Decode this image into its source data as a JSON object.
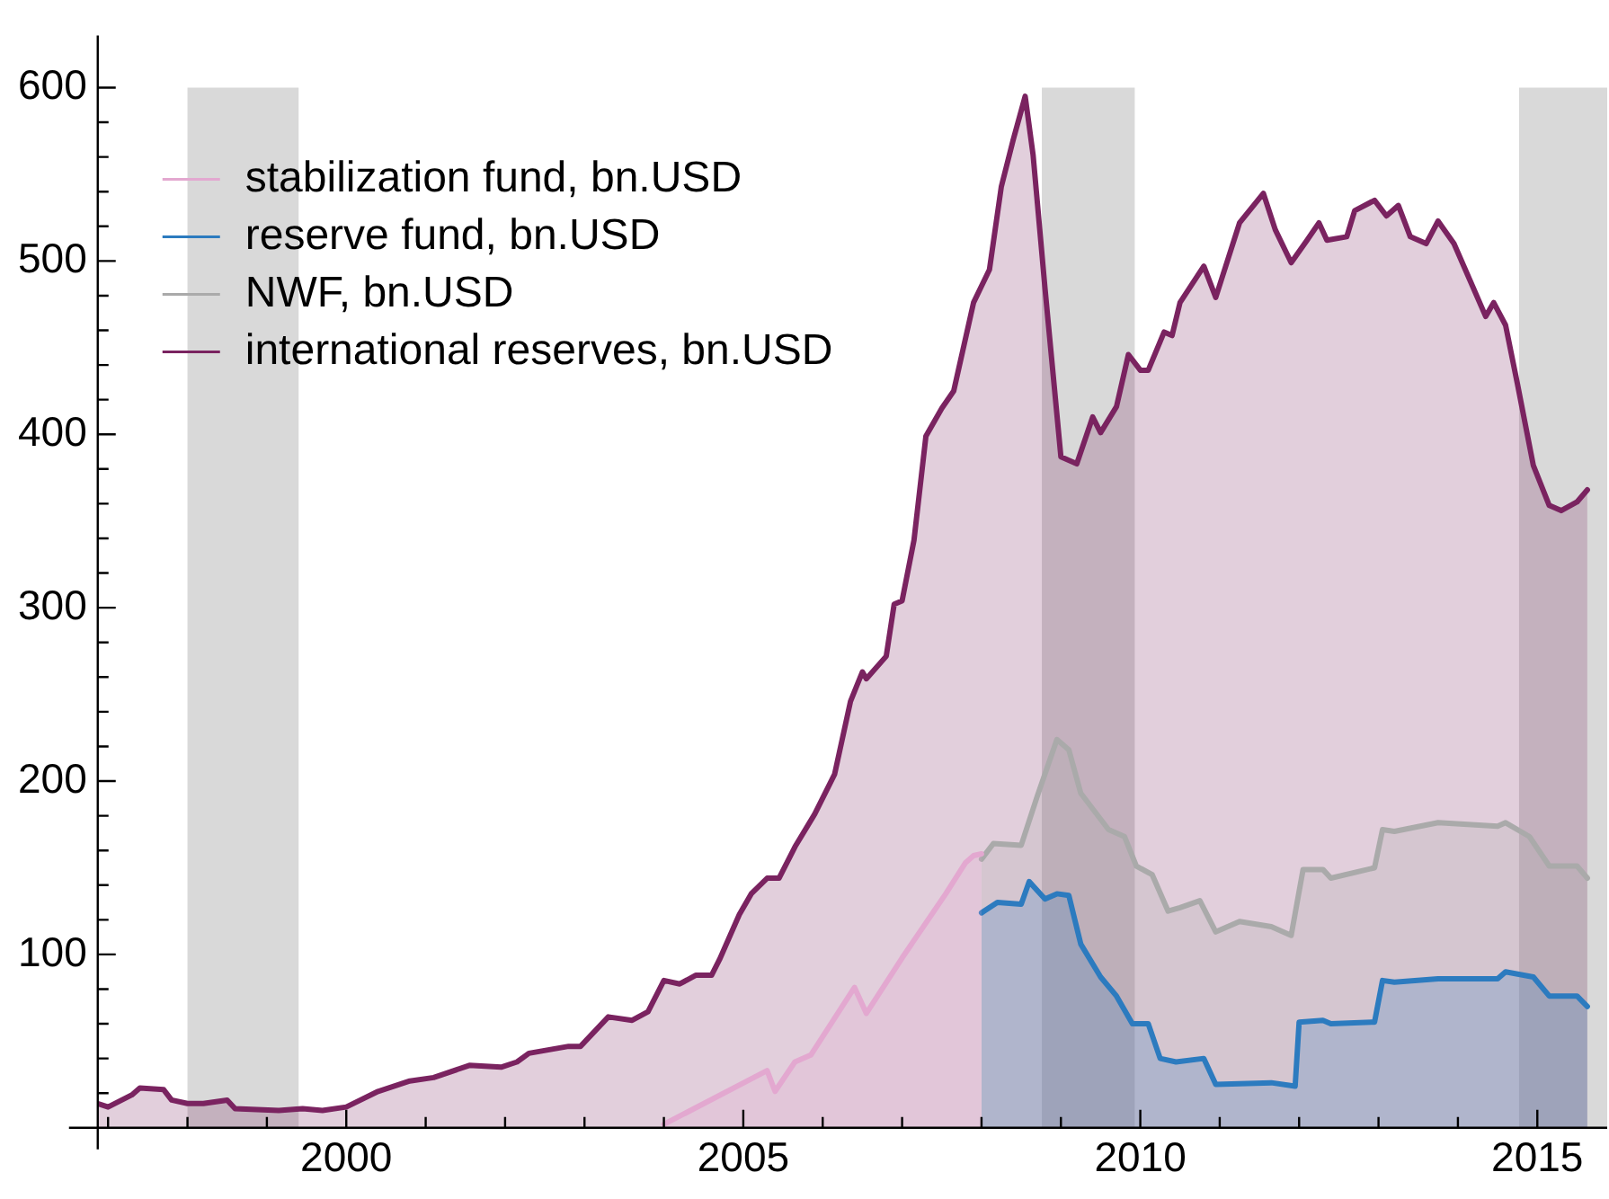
{
  "chart_data": {
    "type": "area",
    "xlim": [
      1996.87,
      2015.88
    ],
    "xticks": [
      {
        "value": 1997,
        "label": null
      },
      {
        "value": 1998,
        "label": null
      },
      {
        "value": 1999,
        "label": null
      },
      2000,
      {
        "value": 2001,
        "label": null
      },
      {
        "value": 2002,
        "label": null
      },
      {
        "value": 2003,
        "label": null
      },
      {
        "value": 2004,
        "label": null
      },
      2005,
      {
        "value": 2006,
        "label": null
      },
      {
        "value": 2007,
        "label": null
      },
      {
        "value": 2008,
        "label": null
      },
      {
        "value": 2009,
        "label": null
      },
      2010,
      {
        "value": 2011,
        "label": null
      },
      {
        "value": 2012,
        "label": null
      },
      {
        "value": 2013,
        "label": null
      },
      {
        "value": 2014,
        "label": null
      },
      2015
    ],
    "ylim": [
      0,
      630
    ],
    "yticks": [
      {
        "value": 0,
        "label": null
      },
      {
        "value": 20,
        "label": null
      },
      {
        "value": 40,
        "label": null
      },
      {
        "value": 60,
        "label": null
      },
      {
        "value": 80,
        "label": null
      },
      100,
      {
        "value": 120,
        "label": null
      },
      {
        "value": 140,
        "label": null
      },
      {
        "value": 160,
        "label": null
      },
      {
        "value": 180,
        "label": null
      },
      200,
      {
        "value": 220,
        "label": null
      },
      {
        "value": 240,
        "label": null
      },
      {
        "value": 260,
        "label": null
      },
      {
        "value": 280,
        "label": null
      },
      300,
      {
        "value": 320,
        "label": null
      },
      {
        "value": 340,
        "label": null
      },
      {
        "value": 360,
        "label": null
      },
      {
        "value": 380,
        "label": null
      },
      400,
      {
        "value": 420,
        "label": null
      },
      {
        "value": 440,
        "label": null
      },
      {
        "value": 460,
        "label": null
      },
      {
        "value": 480,
        "label": null
      },
      500,
      {
        "value": 520,
        "label": null
      },
      {
        "value": 540,
        "label": null
      },
      {
        "value": 560,
        "label": null
      },
      {
        "value": 580,
        "label": null
      },
      600
    ],
    "grid": false,
    "legend": "top left",
    "marker": "none",
    "bands": [
      {
        "axis": "x",
        "from": 1998.0,
        "to": 1999.4,
        "color": "#d9d9d9"
      },
      {
        "axis": "x",
        "from": 2008.76,
        "to": 2009.93,
        "color": "#d9d9d9"
      },
      {
        "axis": "x",
        "from": 2014.77,
        "to": 2015.88,
        "color": "#d9d9d9"
      }
    ],
    "series": [
      {
        "name": "stabilization fund, bn.USD",
        "color": "#e3a8d0",
        "x": [
          2004.0,
          2005.3,
          2005.4,
          2005.65,
          2005.85,
          2006.4,
          2006.55,
          2007.0,
          2007.55,
          2007.8,
          2007.9,
          2008.0
        ],
        "values": [
          2,
          33,
          21,
          38,
          42,
          81,
          66,
          98,
          135,
          153,
          157,
          158
        ]
      },
      {
        "name": "reserve fund, bn.USD",
        "color": "#2c7bbf",
        "x": [
          2008.0,
          2008.2,
          2008.5,
          2008.6,
          2008.8,
          2008.95,
          2009.1,
          2009.25,
          2009.5,
          2009.7,
          2009.9,
          2010.1,
          2010.25,
          2010.45,
          2010.8,
          2010.95,
          2011.65,
          2011.95,
          2012.0,
          2012.3,
          2012.4,
          2012.95,
          2013.05,
          2013.2,
          2013.75,
          2014.5,
          2014.6,
          2014.95,
          2015.15,
          2015.5,
          2015.63
        ],
        "values": [
          124,
          130,
          129,
          142,
          132,
          135,
          134,
          106,
          87,
          76,
          60,
          60,
          40,
          38,
          40,
          25,
          26,
          24,
          61,
          62,
          60,
          61,
          85,
          84,
          86,
          86,
          90,
          87,
          76,
          76,
          70
        ]
      },
      {
        "name": "NWF, bn.USD",
        "color": "#aaaaaa",
        "x": [
          2008.0,
          2008.15,
          2008.5,
          2008.7,
          2008.95,
          2009.1,
          2009.25,
          2009.6,
          2009.8,
          2009.95,
          2010.15,
          2010.35,
          2010.5,
          2010.75,
          2010.95,
          2011.25,
          2011.65,
          2011.9,
          2012.05,
          2012.3,
          2012.4,
          2012.95,
          2013.05,
          2013.2,
          2013.75,
          2014.5,
          2014.6,
          2014.9,
          2015.15,
          2015.5,
          2015.63
        ],
        "values": [
          155,
          164,
          163,
          191,
          224,
          218,
          193,
          172,
          168,
          151,
          146,
          125,
          127,
          131,
          113,
          119,
          116,
          111,
          149,
          149,
          144,
          150,
          172,
          171,
          176,
          174,
          176,
          168,
          151,
          151,
          144
        ]
      },
      {
        "name": "international reserves, bn.USD",
        "color": "#7a2360",
        "x": [
          1996.87,
          1997.0,
          1997.3,
          1997.4,
          1997.7,
          1997.8,
          1998.0,
          1998.2,
          1998.5,
          1998.6,
          1999.15,
          1999.45,
          1999.7,
          2000.0,
          2000.4,
          2000.8,
          2001.1,
          2001.55,
          2001.95,
          2002.15,
          2002.3,
          2002.8,
          2002.95,
          2003.3,
          2003.6,
          2003.8,
          2004.0,
          2004.2,
          2004.4,
          2004.6,
          2004.7,
          2004.95,
          2005.1,
          2005.3,
          2005.45,
          2005.65,
          2005.9,
          2006.15,
          2006.35,
          2006.5,
          2006.55,
          2006.8,
          2006.9,
          2007.0,
          2007.15,
          2007.3,
          2007.5,
          2007.65,
          2007.9,
          2008.1,
          2008.25,
          2008.4,
          2008.55,
          2008.65,
          2008.8,
          2009.0,
          2009.2,
          2009.4,
          2009.5,
          2009.7,
          2009.85,
          2010.0,
          2010.1,
          2010.3,
          2010.4,
          2010.5,
          2010.8,
          2010.95,
          2011.25,
          2011.55,
          2011.7,
          2011.9,
          2012.1,
          2012.25,
          2012.35,
          2012.6,
          2012.7,
          2012.95,
          2013.1,
          2013.25,
          2013.4,
          2013.6,
          2013.75,
          2013.95,
          2014.15,
          2014.35,
          2014.45,
          2014.6,
          2014.75,
          2014.95,
          2015.15,
          2015.3,
          2015.5,
          2015.63
        ],
        "values": [
          14,
          12,
          19,
          23,
          22,
          16,
          14,
          14,
          16,
          11,
          10,
          11,
          10,
          12,
          21,
          27,
          29,
          36,
          35,
          38,
          43,
          47,
          47,
          64,
          62,
          67,
          85,
          83,
          88,
          88,
          97,
          123,
          135,
          144,
          144,
          162,
          181,
          204,
          246,
          263,
          259,
          272,
          302,
          304,
          339,
          399,
          415,
          425,
          476,
          495,
          543,
          570,
          595,
          561,
          484,
          387,
          383,
          410,
          401,
          416,
          446,
          437,
          437,
          459,
          457,
          476,
          497,
          479,
          522,
          539,
          518,
          499,
          512,
          522,
          512,
          514,
          529,
          535,
          526,
          532,
          514,
          510,
          523,
          510,
          489,
          468,
          476,
          463,
          429,
          382,
          359,
          356,
          361,
          368
        ]
      }
    ]
  }
}
